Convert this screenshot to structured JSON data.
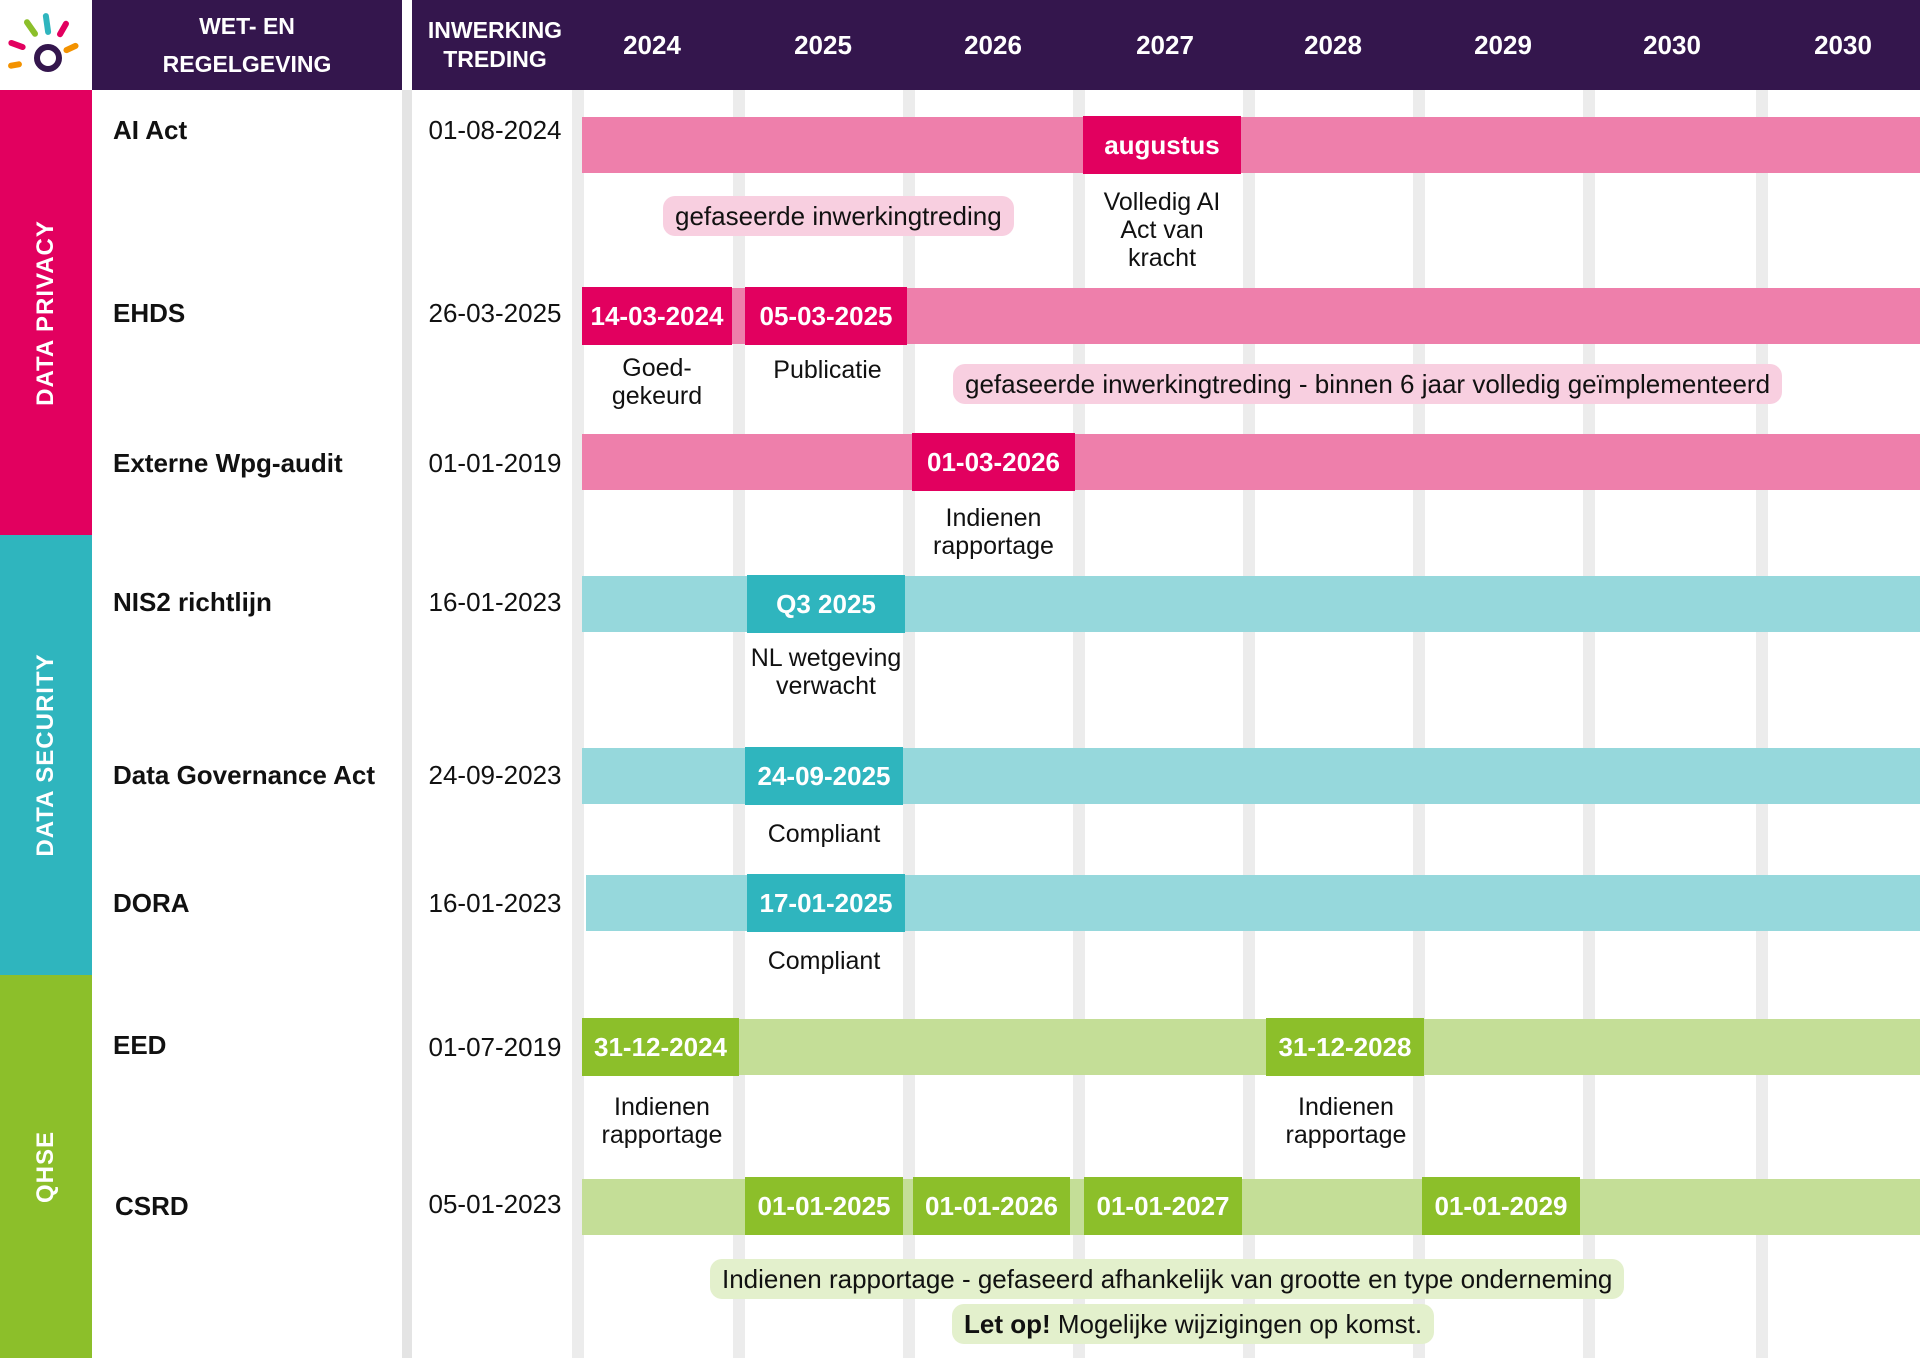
{
  "colors": {
    "header": "#34164d",
    "privacy_accent": "#e2005f",
    "privacy_bar": "#ee7fab",
    "privacy_pill": "#f8cfe0",
    "security_accent": "#2fb5be",
    "security_bar": "#96d8dc",
    "qhse_accent": "#8cbf2a",
    "qhse_bar": "#c4de97",
    "qhse_pill": "#e3f0cc"
  },
  "header": {
    "law_label": "WET- EN REGELGEVING",
    "date_label": "INWERKING TREDING",
    "years": [
      "2024",
      "2025",
      "2026",
      "2027",
      "2028",
      "2029",
      "2030",
      "2030"
    ]
  },
  "categories": {
    "privacy": "DATA PRIVACY",
    "security": "DATA SECURITY",
    "qhse": "QHSE"
  },
  "rows": {
    "ai_act": {
      "name": "AI Act",
      "date": "01-08-2024",
      "m1": "augustus",
      "m1_note": "Volledig AI Act van kracht",
      "pill": "gefaseerde inwerkingtreding"
    },
    "ehds": {
      "name": "EHDS",
      "date": "26-03-2025",
      "m1": "14-03-2024",
      "m1_note": "Goed-gekeurd",
      "m2": "05-03-2025",
      "m2_note": "Publicatie",
      "pill": "gefaseerde inwerkingtreding - binnen 6 jaar volledig geïmplementeerd"
    },
    "wpg": {
      "name": "Externe Wpg-audit",
      "date": "01-01-2019",
      "m1": "01-03-2026",
      "m1_note": "Indienen rapportage"
    },
    "nis2": {
      "name": "NIS2 richtlijn",
      "date": "16-01-2023",
      "m1": "Q3 2025",
      "m1_note": "NL wetgeving verwacht"
    },
    "dga": {
      "name": "Data Governance Act",
      "date": "24-09-2023",
      "m1": "24-09-2025",
      "m1_note": "Compliant"
    },
    "dora": {
      "name": "DORA",
      "date": "16-01-2023",
      "m1": "17-01-2025",
      "m1_note": "Compliant"
    },
    "eed": {
      "name": "EED",
      "date": "01-07-2019",
      "m1": "31-12-2024",
      "m1_note": "Indienen rapportage",
      "m2": "31-12-2028",
      "m2_note": "Indienen rapportage"
    },
    "csrd": {
      "name": "CSRD",
      "date": "05-01-2023",
      "m1": "01-01-2025",
      "m2": "01-01-2026",
      "m3": "01-01-2027",
      "m4": "01-01-2029",
      "pill": "Indienen rapportage - gefaseerd afhankelijk van grootte en type onderneming",
      "warning_bold": "Let op!",
      "warning_text": " Mogelijke wijzigingen op komst."
    }
  }
}
